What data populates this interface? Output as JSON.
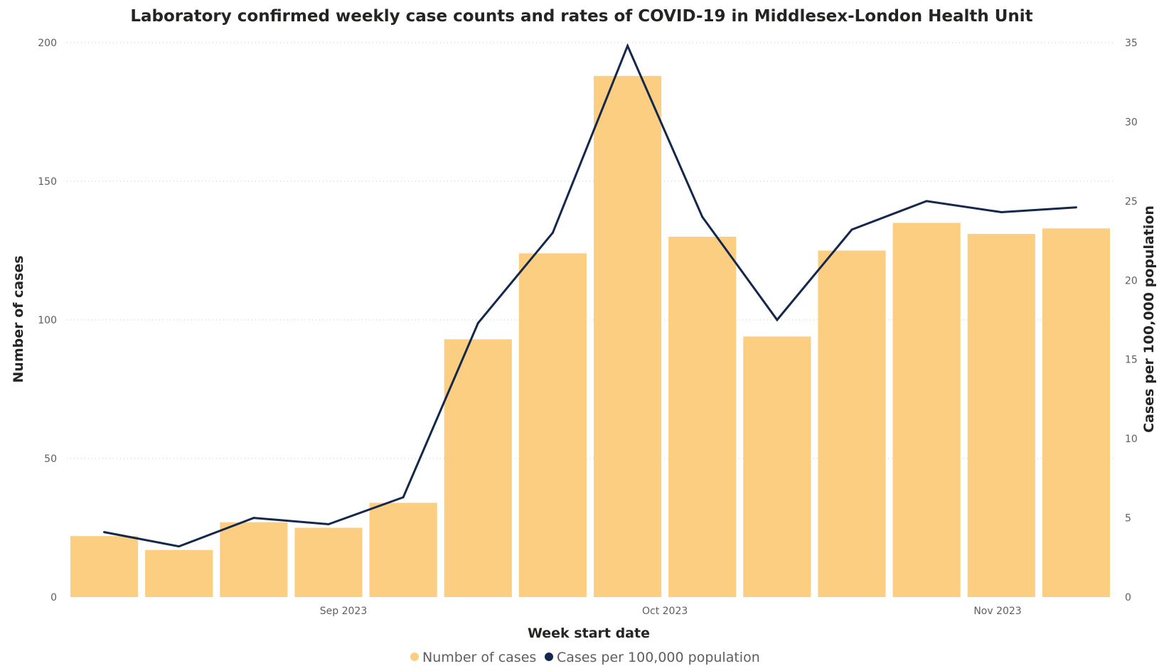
{
  "chart_data": {
    "type": "bar",
    "title": "Laboratory confirmed weekly case counts and rates of COVID-19 in Middlesex-London Health Unit",
    "xlabel": "Week start date",
    "ylabel": "Number of cases",
    "y2label": "Cases per 100,000 population",
    "x_ticks": [
      {
        "label": "Sep 2023",
        "index": 3.7
      },
      {
        "label": "Oct 2023",
        "index": 8.0
      },
      {
        "label": "Nov 2023",
        "index": 12.45
      }
    ],
    "ylim": [
      0,
      200
    ],
    "y_ticks": [
      0,
      50,
      100,
      150,
      200
    ],
    "y2lim": [
      0,
      35
    ],
    "y2_ticks": [
      0,
      5,
      10,
      15,
      20,
      25,
      30,
      35
    ],
    "grid": true,
    "legend_position": "bottom",
    "series": [
      {
        "name": "Number of cases",
        "type": "bar",
        "color": "#fbce82",
        "axis": "left",
        "values": [
          22,
          17,
          27,
          25,
          34,
          93,
          124,
          188,
          130,
          94,
          125,
          135,
          131,
          133
        ]
      },
      {
        "name": "Cases per 100,000 population",
        "type": "line",
        "color": "#13284c",
        "axis": "right",
        "values": [
          4.1,
          3.2,
          5.0,
          4.6,
          6.3,
          17.3,
          23.0,
          34.8,
          24.0,
          17.5,
          23.2,
          25.0,
          24.3,
          24.6
        ]
      }
    ]
  }
}
